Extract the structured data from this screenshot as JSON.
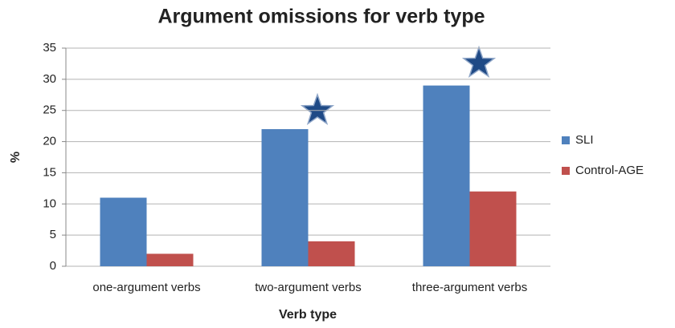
{
  "chart_data": {
    "type": "bar",
    "title": "Argument omissions for verb type",
    "x_label": "Verb type",
    "y_label": "%",
    "categories": [
      "one-argument verbs",
      "two-argument verbs",
      "three-argument verbs"
    ],
    "series": [
      {
        "name": "SLI",
        "color": "#4f81bd",
        "values": [
          11,
          22,
          29
        ]
      },
      {
        "name": "Control-AGE",
        "color": "#c0504d",
        "values": [
          2,
          4,
          12
        ]
      }
    ],
    "ylim": [
      0,
      35
    ],
    "yticks": [
      0,
      5,
      10,
      15,
      20,
      25,
      30,
      35
    ],
    "grid": true,
    "legend": "right"
  }
}
